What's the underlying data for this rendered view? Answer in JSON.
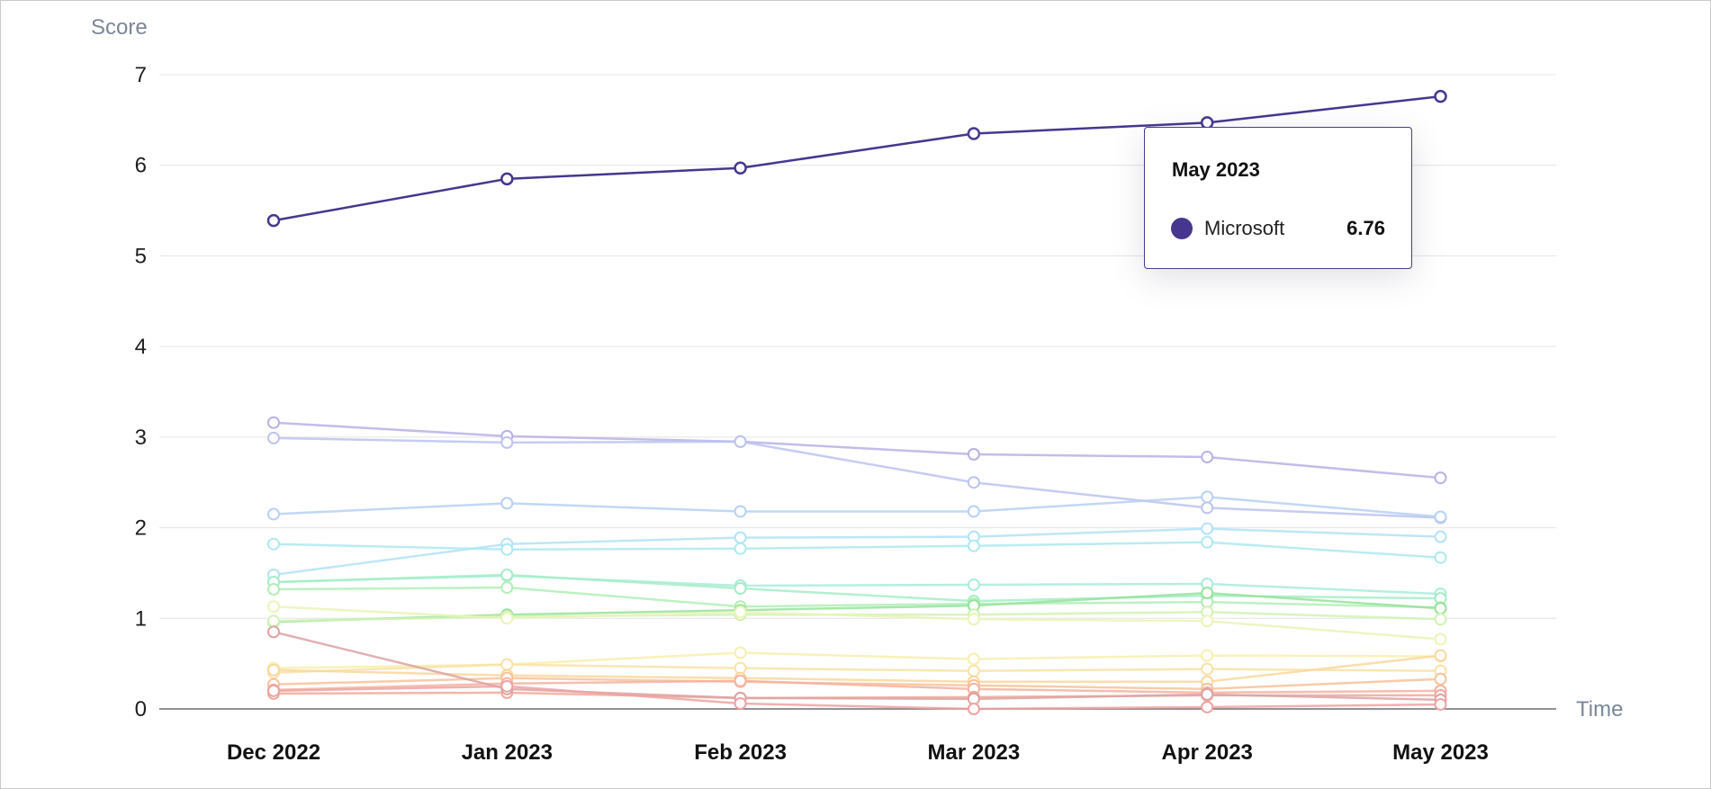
{
  "chart_data": {
    "type": "line",
    "ylabel": "Score",
    "xlabel": "Time",
    "ylim": [
      0,
      7
    ],
    "yticks": [
      "0",
      "1",
      "2",
      "3",
      "4",
      "5",
      "6",
      "7"
    ],
    "categories": [
      "Dec 2022",
      "Jan 2023",
      "Feb 2023",
      "Mar 2023",
      "Apr 2023",
      "May 2023"
    ],
    "grid": true,
    "series": [
      {
        "name": "Microsoft",
        "color": "#47368f",
        "highlighted": true,
        "values": [
          5.39,
          5.85,
          5.97,
          6.35,
          6.47,
          6.76
        ]
      },
      {
        "color": "#b7b2e5",
        "values": [
          3.16,
          3.01,
          2.95,
          2.81,
          2.78,
          2.55
        ]
      },
      {
        "color": "#bcc3ee",
        "values": [
          2.99,
          2.94,
          2.95,
          2.5,
          2.22,
          2.11
        ]
      },
      {
        "color": "#b7d0f3",
        "values": [
          2.15,
          2.27,
          2.18,
          2.18,
          2.34,
          2.12
        ]
      },
      {
        "color": "#b3e2f6",
        "values": [
          1.48,
          1.82,
          1.89,
          1.9,
          1.99,
          1.9
        ]
      },
      {
        "color": "#ade9ef",
        "values": [
          1.82,
          1.76,
          1.77,
          1.8,
          1.84,
          1.67
        ]
      },
      {
        "color": "#a8ecdb",
        "values": [
          1.4,
          1.47,
          1.36,
          1.37,
          1.38,
          1.27
        ]
      },
      {
        "color": "#a6edc7",
        "values": [
          1.4,
          1.48,
          1.33,
          1.19,
          1.25,
          1.22
        ]
      },
      {
        "color": "#b0efb6",
        "values": [
          1.32,
          1.34,
          1.13,
          1.16,
          1.18,
          1.12
        ]
      },
      {
        "color": "#97e39c",
        "values": [
          0.96,
          1.04,
          1.09,
          1.14,
          1.28,
          1.11
        ]
      },
      {
        "color": "#d0f2b3",
        "values": [
          0.97,
          1.02,
          1.04,
          1.04,
          1.07,
          0.99
        ]
      },
      {
        "color": "#e9f5b7",
        "values": [
          1.13,
          1.0,
          1.07,
          0.99,
          0.97,
          0.77
        ]
      },
      {
        "color": "#f8eeae",
        "values": [
          0.45,
          0.49,
          0.62,
          0.55,
          0.59,
          0.58
        ]
      },
      {
        "color": "#f9e2a6",
        "values": [
          0.4,
          0.49,
          0.45,
          0.42,
          0.44,
          0.42
        ]
      },
      {
        "color": "#f9d79c",
        "values": [
          0.43,
          0.37,
          0.34,
          0.3,
          0.3,
          0.59
        ]
      },
      {
        "color": "#f7c29a",
        "values": [
          0.27,
          0.34,
          0.3,
          0.26,
          0.22,
          0.33
        ]
      },
      {
        "color": "#f5b2a0",
        "values": [
          0.21,
          0.28,
          0.31,
          0.22,
          0.18,
          0.2
        ]
      },
      {
        "color": "#f1a999",
        "values": [
          0.17,
          0.18,
          0.12,
          0.13,
          0.15,
          0.15
        ]
      },
      {
        "color": "#dca3a3",
        "values": [
          0.85,
          0.22,
          0.12,
          0.11,
          0.16,
          0.1
        ]
      },
      {
        "color": "#efa2a2",
        "values": [
          0.2,
          0.25,
          0.06,
          0.0,
          0.02,
          0.05
        ]
      }
    ]
  },
  "tooltip": {
    "title": "May 2023",
    "series_name": "Microsoft",
    "value": "6.76",
    "color": "#47368f"
  }
}
